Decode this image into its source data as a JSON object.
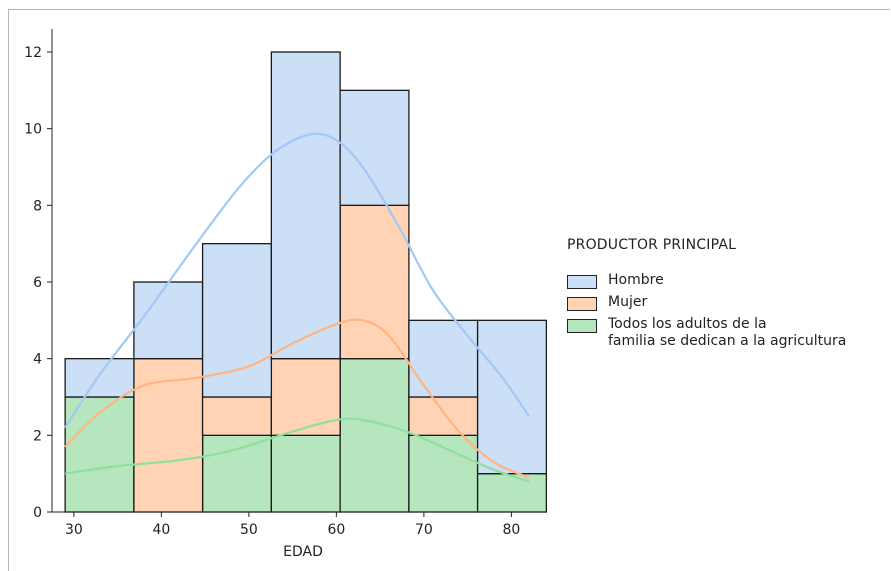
{
  "chart_data": {
    "type": "histogram",
    "stacked": true,
    "xlabel": "EDAD",
    "ylabel": "",
    "xlim": [
      27.5,
      83.5
    ],
    "ylim": [
      0,
      12.6
    ],
    "x_ticks": [
      30,
      40,
      50,
      60,
      70,
      80
    ],
    "y_ticks": [
      0,
      2,
      4,
      6,
      8,
      10,
      12
    ],
    "bin_edges": [
      29,
      36.86,
      44.71,
      52.57,
      60.43,
      68.29,
      76.14,
      84
    ],
    "legend": {
      "title": "PRODUCTOR  PRINCIPAL",
      "position": "right"
    },
    "series": [
      {
        "name": "Todos los adultos de la\nfamilia se dedican a la agricultura",
        "color": "#b5e6be",
        "kde_color": "#8de19a",
        "values": [
          3,
          0,
          2,
          2,
          4,
          2,
          1
        ],
        "kde": [
          [
            29,
            1.0
          ],
          [
            35,
            1.2
          ],
          [
            42,
            1.35
          ],
          [
            48,
            1.6
          ],
          [
            55,
            2.1
          ],
          [
            60,
            2.4
          ],
          [
            63,
            2.4
          ],
          [
            68,
            2.1
          ],
          [
            74,
            1.5
          ],
          [
            78,
            1.1
          ],
          [
            82,
            0.8
          ]
        ]
      },
      {
        "name": "Mujer",
        "color": "#ffd3b4",
        "kde_color": "#ffb482",
        "values": [
          0,
          4,
          1,
          2,
          4,
          1,
          0
        ],
        "kde": [
          [
            29,
            1.7
          ],
          [
            33,
            2.6
          ],
          [
            38,
            3.3
          ],
          [
            44,
            3.5
          ],
          [
            50,
            3.8
          ],
          [
            55,
            4.4
          ],
          [
            60,
            4.9
          ],
          [
            63,
            5.0
          ],
          [
            66,
            4.6
          ],
          [
            70,
            3.3
          ],
          [
            74,
            2.1
          ],
          [
            78,
            1.3
          ],
          [
            82,
            0.9
          ]
        ]
      },
      {
        "name": "Hombre",
        "color": "#cbdff6",
        "kde_color": "#a1c9f4",
        "values": [
          1,
          2,
          4,
          8,
          3,
          2,
          4
        ],
        "kde": [
          [
            29,
            2.2
          ],
          [
            33,
            3.6
          ],
          [
            38,
            5.1
          ],
          [
            44,
            7.0
          ],
          [
            49,
            8.5
          ],
          [
            53,
            9.4
          ],
          [
            57,
            9.85
          ],
          [
            60,
            9.7
          ],
          [
            63,
            9.0
          ],
          [
            67,
            7.5
          ],
          [
            71,
            5.8
          ],
          [
            75,
            4.6
          ],
          [
            79,
            3.5
          ],
          [
            82,
            2.5
          ]
        ]
      }
    ]
  }
}
